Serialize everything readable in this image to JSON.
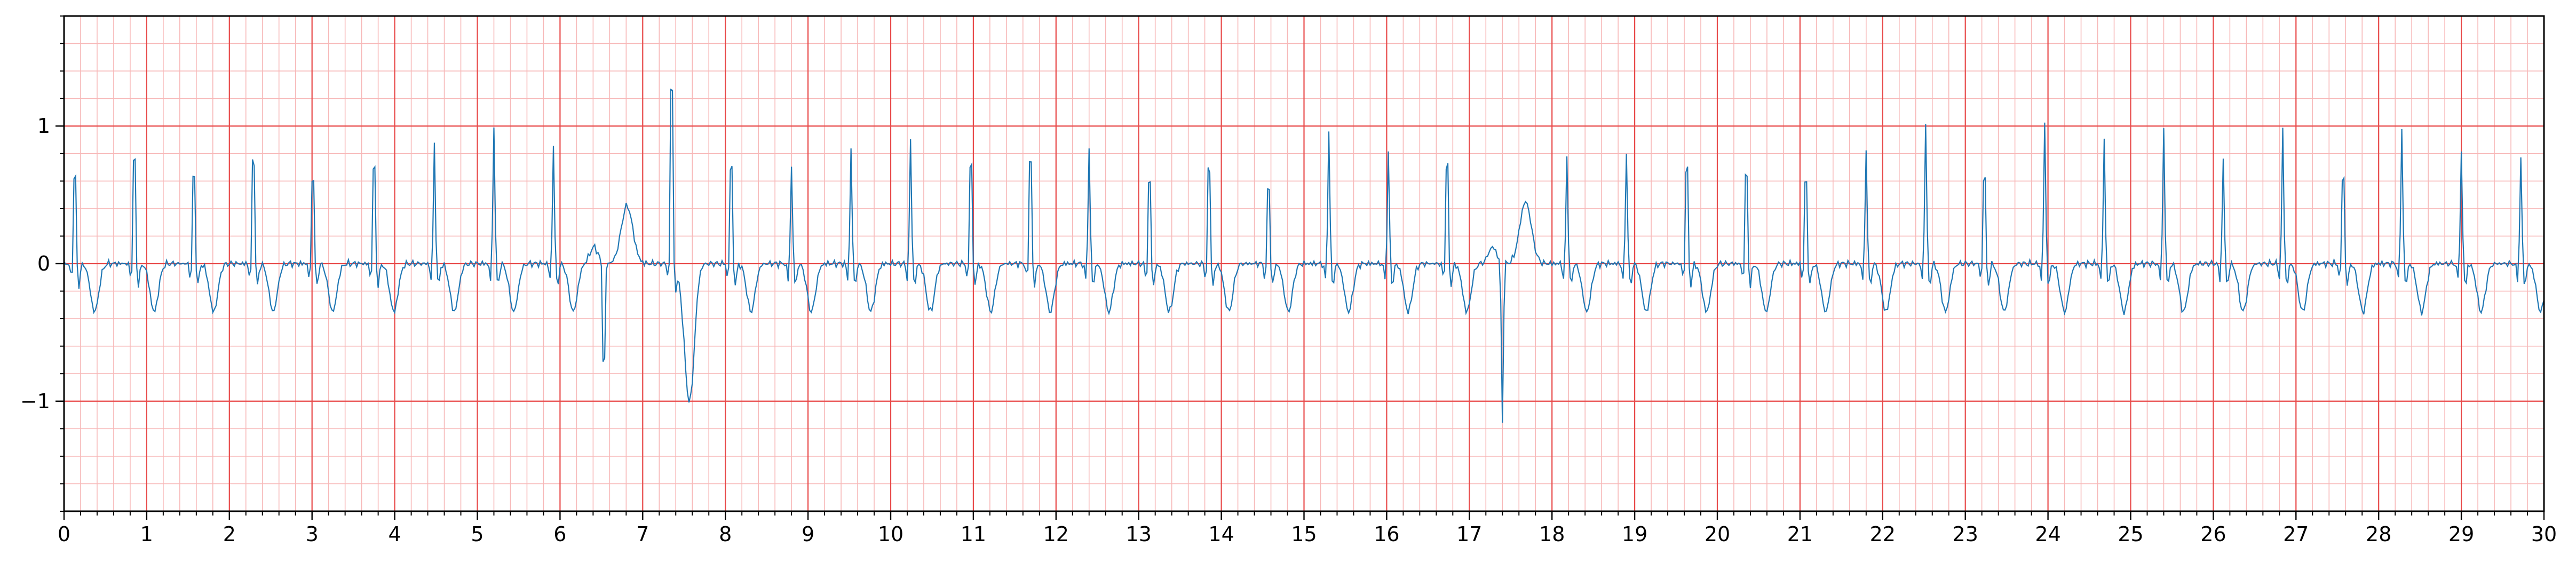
{
  "chart_data": {
    "type": "line",
    "title": "",
    "xlabel": "",
    "ylabel": "",
    "xlim": [
      0,
      30
    ],
    "ylim": [
      -1.8,
      1.8
    ],
    "x_ticks": [
      0,
      1,
      2,
      3,
      4,
      5,
      6,
      7,
      8,
      9,
      10,
      11,
      12,
      13,
      14,
      15,
      16,
      17,
      18,
      19,
      20,
      21,
      22,
      23,
      24,
      25,
      26,
      27,
      28,
      29,
      30
    ],
    "x_tick_labels": [
      "0",
      "1",
      "2",
      "3",
      "4",
      "5",
      "6",
      "7",
      "8",
      "9",
      "10",
      "11",
      "12",
      "13",
      "14",
      "15",
      "16",
      "17",
      "18",
      "19",
      "20",
      "21",
      "22",
      "23",
      "24",
      "25",
      "26",
      "27",
      "28",
      "29",
      "30"
    ],
    "y_ticks": [
      -1,
      0,
      1
    ],
    "y_tick_labels": [
      "−1",
      "0",
      "1"
    ],
    "grid": {
      "major_x_step": 1,
      "major_y_step": 1,
      "minor_x_step": 0.2,
      "minor_y_step": 0.2
    },
    "colors": {
      "trace": "#1f77b4",
      "grid_major": "#e84a4a",
      "grid_minor": "#f7b8b8",
      "axes": "#000000"
    },
    "series": [
      {
        "sampling_interval_s": 0.02,
        "beats": [
          {
            "t": 0.13,
            "r": 0.89
          },
          {
            "t": 0.85,
            "r": 1.06
          },
          {
            "t": 1.57,
            "r": 0.89
          },
          {
            "t": 2.29,
            "r": 1.05
          },
          {
            "t": 3.01,
            "r": 0.87
          },
          {
            "t": 3.75,
            "r": 0.98
          },
          {
            "t": 4.48,
            "r": 0.87
          },
          {
            "t": 5.2,
            "r": 1.01
          },
          {
            "t": 5.92,
            "r": 0.86
          },
          {
            "t": 7.35,
            "r": 1.8
          },
          {
            "t": 8.07,
            "r": 0.99
          },
          {
            "t": 8.8,
            "r": 0.71
          },
          {
            "t": 9.52,
            "r": 0.83
          },
          {
            "t": 10.24,
            "r": 0.9
          },
          {
            "t": 10.97,
            "r": 1.02
          },
          {
            "t": 11.69,
            "r": 1.06
          },
          {
            "t": 12.4,
            "r": 0.85
          },
          {
            "t": 13.13,
            "r": 0.83
          },
          {
            "t": 13.85,
            "r": 0.96
          },
          {
            "t": 14.57,
            "r": 0.78
          },
          {
            "t": 15.3,
            "r": 0.98
          },
          {
            "t": 16.02,
            "r": 0.81
          },
          {
            "t": 16.73,
            "r": 1.0
          },
          {
            "t": 18.18,
            "r": 0.78
          },
          {
            "t": 18.9,
            "r": 0.82
          },
          {
            "t": 19.63,
            "r": 0.97
          },
          {
            "t": 20.35,
            "r": 0.9
          },
          {
            "t": 21.07,
            "r": 0.84
          },
          {
            "t": 21.8,
            "r": 0.84
          },
          {
            "t": 22.52,
            "r": 1.03
          },
          {
            "t": 23.23,
            "r": 0.88
          },
          {
            "t": 23.96,
            "r": 1.03
          },
          {
            "t": 24.68,
            "r": 0.9
          },
          {
            "t": 25.4,
            "r": 0.98
          },
          {
            "t": 26.12,
            "r": 0.77
          },
          {
            "t": 26.84,
            "r": 0.98
          },
          {
            "t": 27.57,
            "r": 0.88
          },
          {
            "t": 28.28,
            "r": 0.99
          },
          {
            "t": 29.0,
            "r": 0.81
          },
          {
            "t": 29.72,
            "r": 0.77
          }
        ],
        "ectopic_beats": [
          {
            "t": 6.53,
            "r": -1.0,
            "t_wave": 0.42
          },
          {
            "t": 17.4,
            "r": -1.17,
            "t_wave": 0.45
          }
        ],
        "t_wave_trough": -0.35,
        "after_spike_trough": {
          "t": 7.55,
          "y": -0.72
        }
      }
    ]
  }
}
